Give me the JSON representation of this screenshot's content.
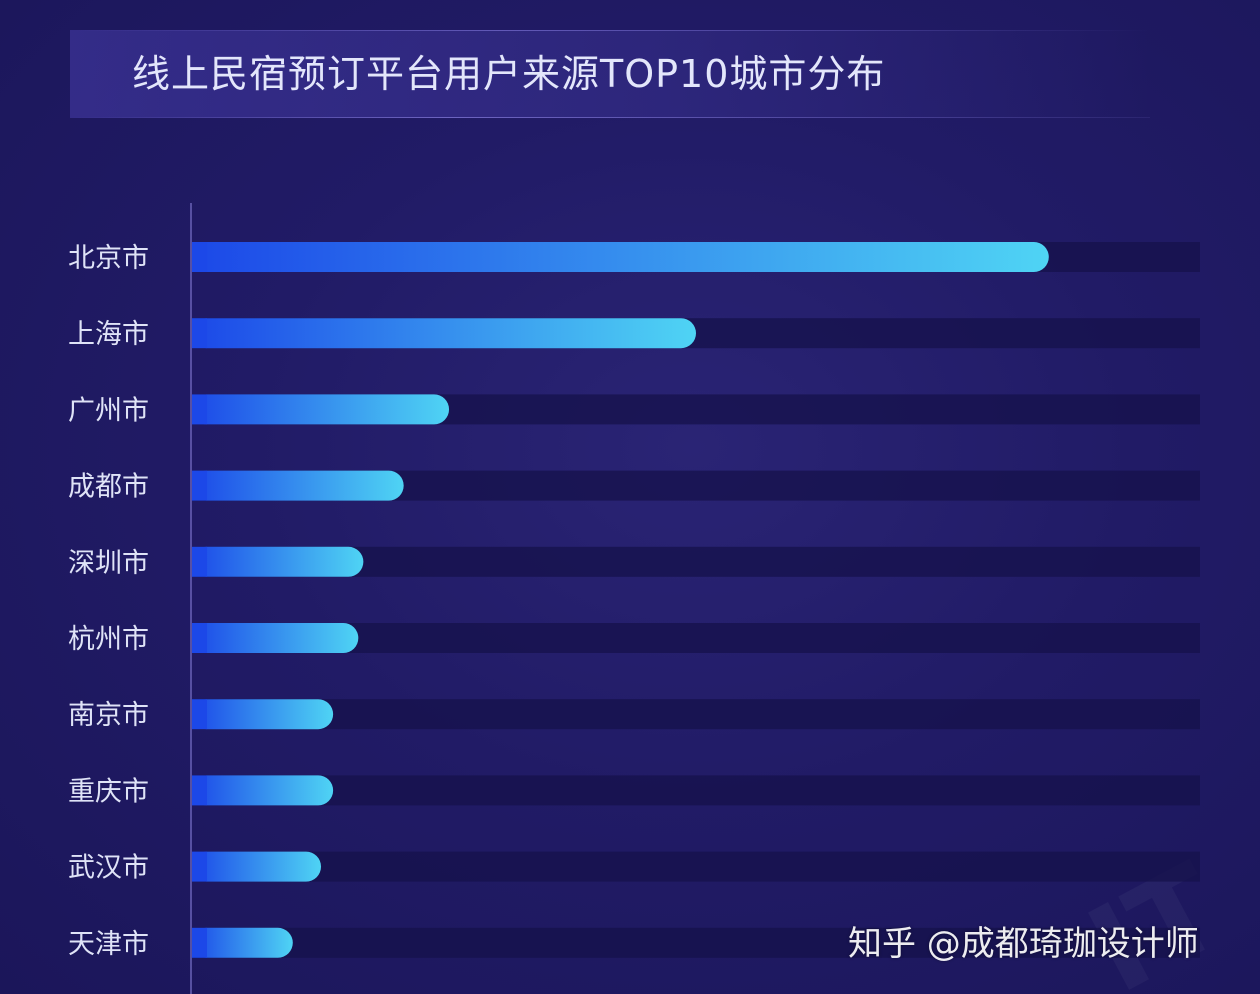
{
  "title": "线上民宿预订平台用户来源TOP10城市分布",
  "watermark": "知乎 @成都琦珈设计师",
  "colors": {
    "bar_start": "#1c48e8",
    "bar_end": "#4fd4f4",
    "track": "#16124b",
    "axis": "#6a63b8",
    "label": "#dfe3f7"
  },
  "chart_data": {
    "type": "bar",
    "orientation": "horizontal",
    "title": "线上民宿预订平台用户来源TOP10城市分布",
    "categories": [
      "北京市",
      "上海市",
      "广州市",
      "成都市",
      "深圳市",
      "杭州市",
      "南京市",
      "重庆市",
      "武汉市",
      "天津市"
    ],
    "values": [
      85,
      50,
      25.5,
      21,
      17,
      16.5,
      14,
      14,
      12.8,
      10
    ],
    "xlim": [
      0,
      100
    ],
    "grid": false,
    "legend": "none"
  }
}
